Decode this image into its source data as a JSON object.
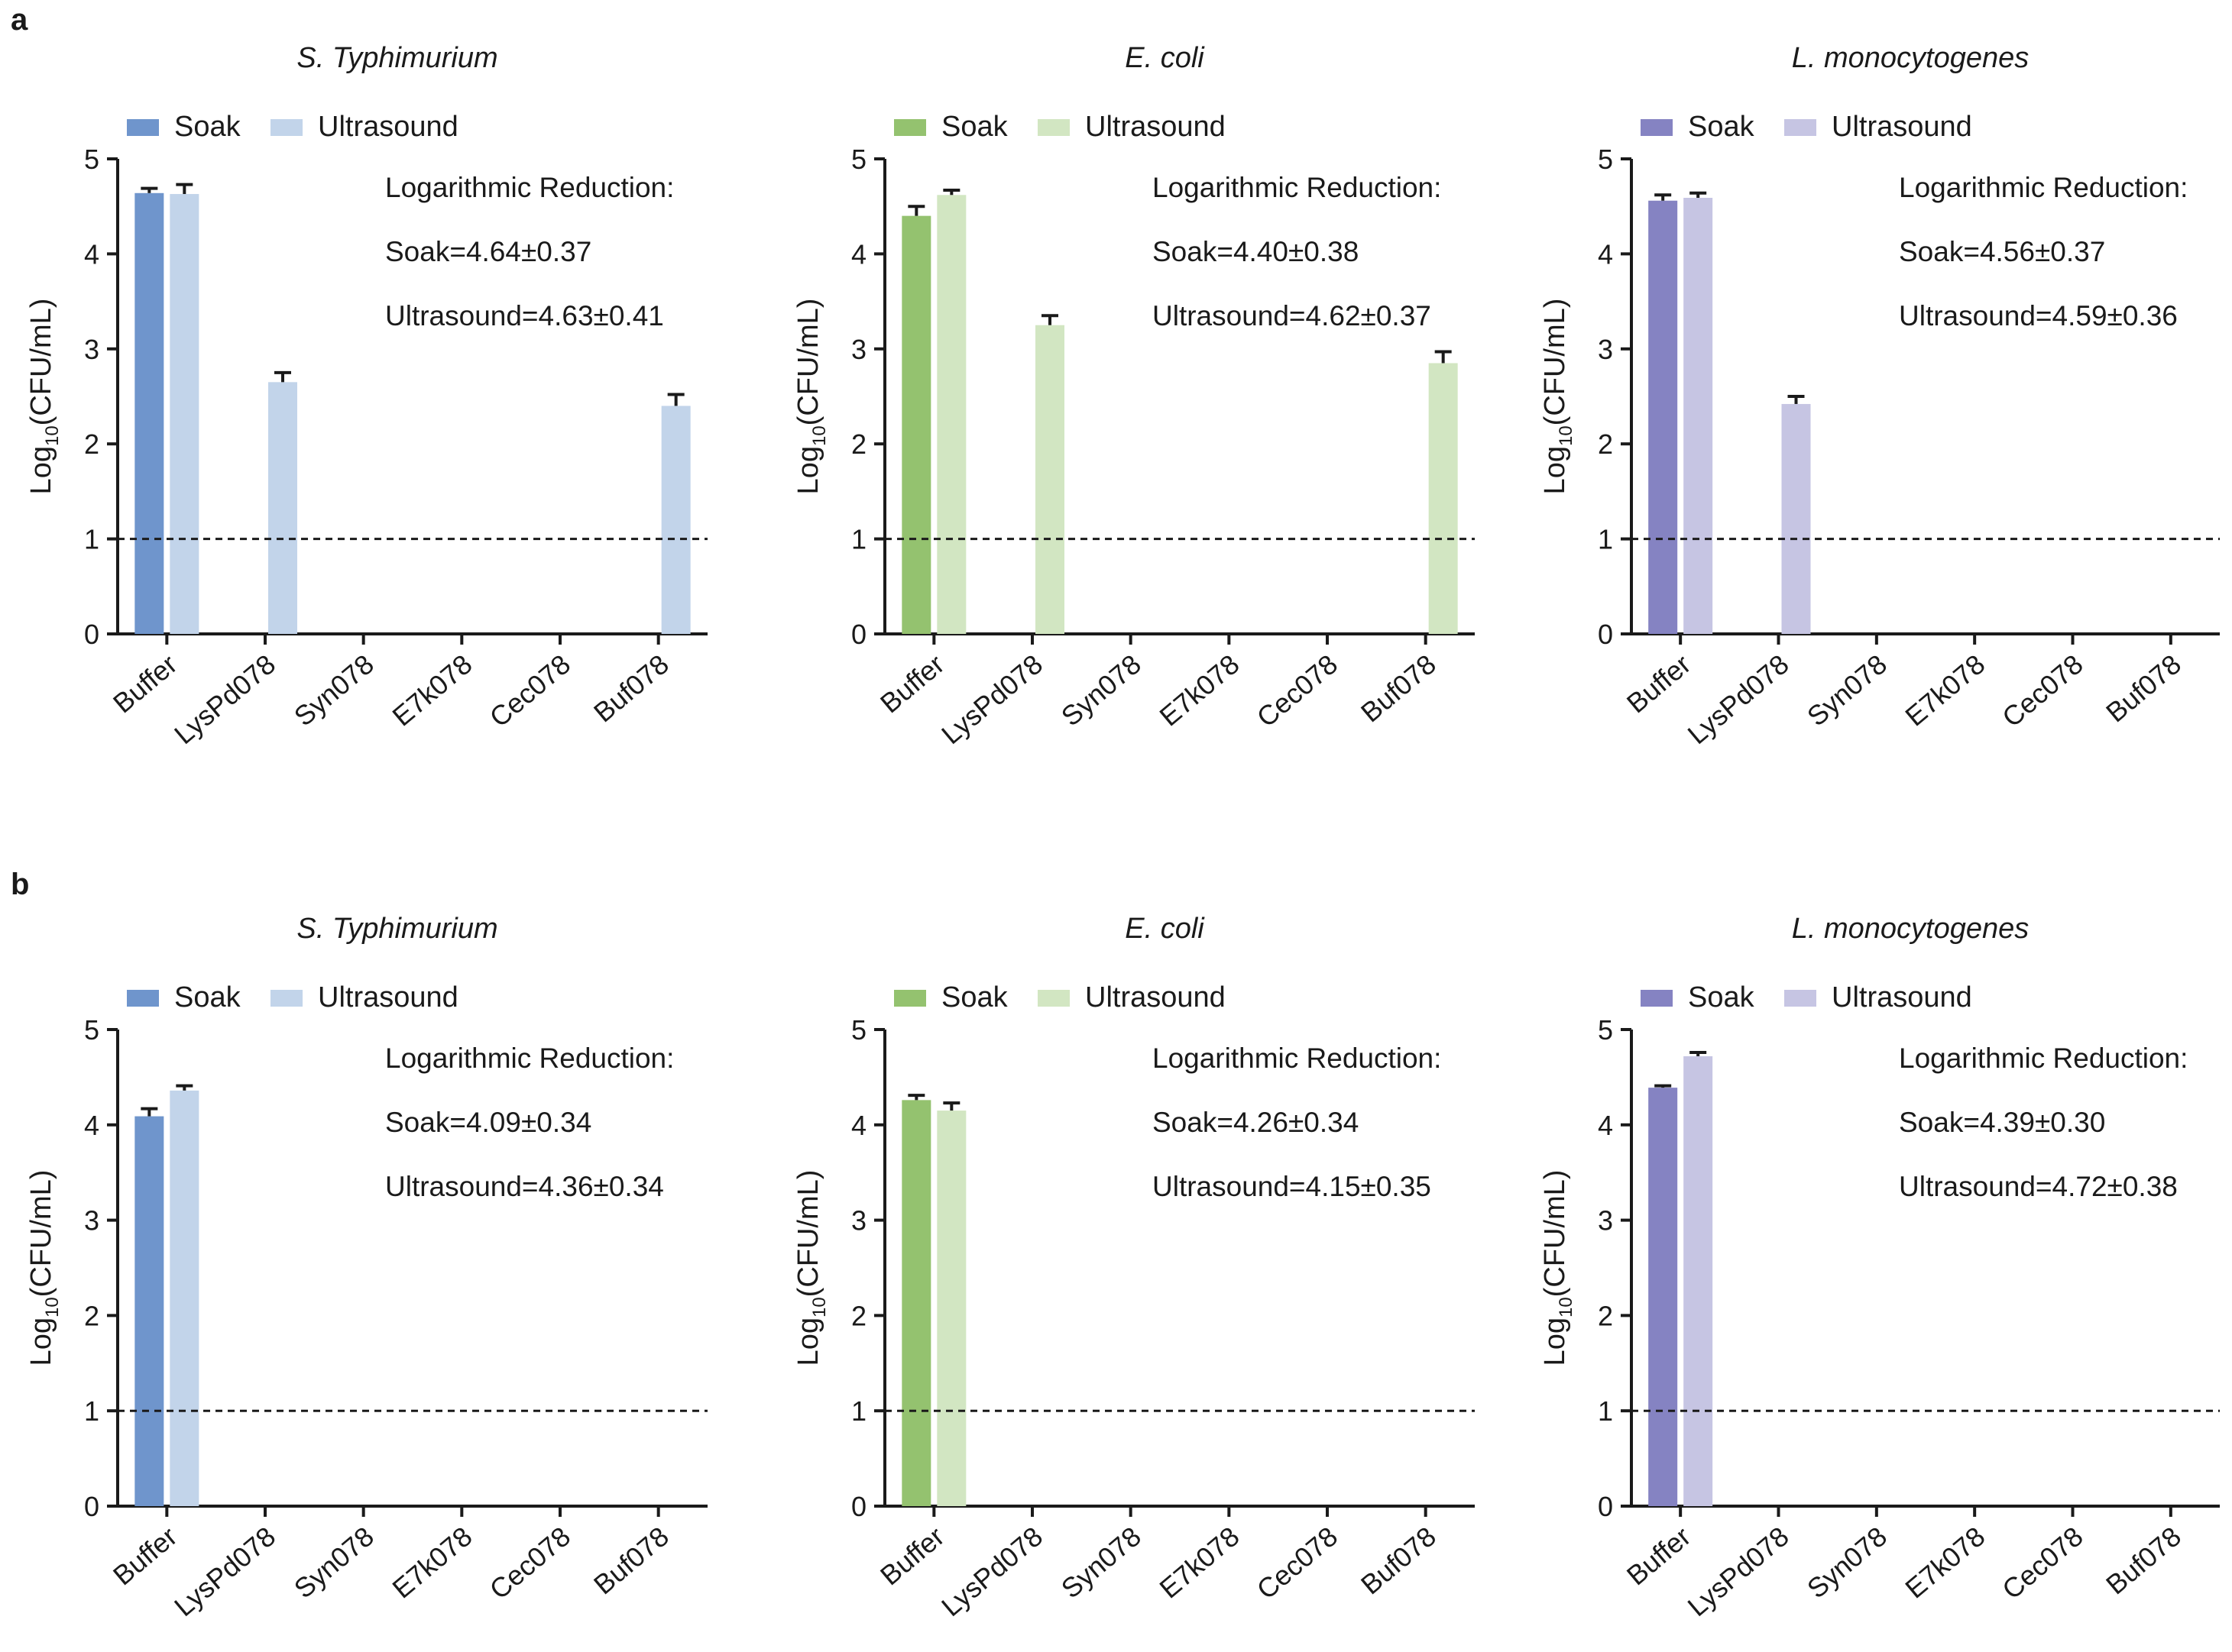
{
  "panels": [
    {
      "letter": "a"
    },
    {
      "letter": "b"
    }
  ],
  "chart_data": [
    {
      "type": "bar",
      "panel": "a",
      "title": "S. Typhimurium",
      "ylabel": "Log10(CFU/mL)",
      "ylabel_main": "Log",
      "ylabel_sub": "10",
      "ylabel_tail": "(CFU/mL)",
      "ylim": [
        0,
        5
      ],
      "yticks": [
        "0",
        "1",
        "2",
        "3",
        "4",
        "5"
      ],
      "categories": [
        "Buffer",
        "LysPd078",
        "Syn078",
        "E7k078",
        "Cec078",
        "Buf078"
      ],
      "threshold": 1,
      "series": [
        {
          "name": "Soak",
          "color": "#6f95cc",
          "values": [
            4.64,
            0,
            0,
            0,
            0,
            0
          ],
          "errors": [
            0.05,
            0,
            0,
            0,
            0,
            0
          ]
        },
        {
          "name": "Ultrasound",
          "color": "#c2d4ea",
          "values": [
            4.63,
            2.65,
            0,
            0,
            0,
            2.4
          ],
          "errors": [
            0.1,
            0.1,
            0,
            0,
            0,
            0.12
          ]
        }
      ],
      "annotation": [
        "Logarithmic Reduction:",
        "Soak=4.64±0.37",
        "Ultrasound=4.63±0.41"
      ]
    },
    {
      "type": "bar",
      "panel": "a",
      "title": "E. coli",
      "ylabel": "Log10(CFU/mL)",
      "ylabel_main": "Log",
      "ylabel_sub": "10",
      "ylabel_tail": "(CFU/mL)",
      "ylim": [
        0,
        5
      ],
      "yticks": [
        "0",
        "1",
        "2",
        "3",
        "4",
        "5"
      ],
      "categories": [
        "Buffer",
        "LysPd078",
        "Syn078",
        "E7k078",
        "Cec078",
        "Buf078"
      ],
      "threshold": 1,
      "series": [
        {
          "name": "Soak",
          "color": "#94c26f",
          "values": [
            4.4,
            0,
            0,
            0,
            0,
            0
          ],
          "errors": [
            0.1,
            0,
            0,
            0,
            0,
            0
          ]
        },
        {
          "name": "Ultrasound",
          "color": "#d2e6c2",
          "values": [
            4.62,
            3.25,
            0,
            0,
            0,
            2.85
          ],
          "errors": [
            0.05,
            0.1,
            0,
            0,
            0,
            0.12
          ]
        }
      ],
      "annotation": [
        "Logarithmic Reduction:",
        "Soak=4.40±0.38",
        "Ultrasound=4.62±0.37"
      ]
    },
    {
      "type": "bar",
      "panel": "a",
      "title": "L. monocytogenes",
      "ylabel": "Log10(CFU/mL)",
      "ylabel_main": "Log",
      "ylabel_sub": "10",
      "ylabel_tail": "(CFU/mL)",
      "ylim": [
        0,
        5
      ],
      "yticks": [
        "0",
        "1",
        "2",
        "3",
        "4",
        "5"
      ],
      "categories": [
        "Buffer",
        "LysPd078",
        "Syn078",
        "E7k078",
        "Cec078",
        "Buf078"
      ],
      "threshold": 1,
      "series": [
        {
          "name": "Soak",
          "color": "#8583c2",
          "values": [
            4.56,
            0,
            0,
            0,
            0,
            0
          ],
          "errors": [
            0.06,
            0,
            0,
            0,
            0,
            0
          ]
        },
        {
          "name": "Ultrasound",
          "color": "#c6c5e3",
          "values": [
            4.59,
            2.42,
            0,
            0,
            0,
            0
          ],
          "errors": [
            0.05,
            0.08,
            0,
            0,
            0,
            0
          ]
        }
      ],
      "annotation": [
        "Logarithmic Reduction:",
        "Soak=4.56±0.37",
        "Ultrasound=4.59±0.36"
      ]
    },
    {
      "type": "bar",
      "panel": "b",
      "title": "S. Typhimurium",
      "ylabel": "Log10(CFU/mL)",
      "ylabel_main": "Log",
      "ylabel_sub": "10",
      "ylabel_tail": "(CFU/mL)",
      "ylim": [
        0,
        5
      ],
      "yticks": [
        "0",
        "1",
        "2",
        "3",
        "4",
        "5"
      ],
      "categories": [
        "Buffer",
        "LysPd078",
        "Syn078",
        "E7k078",
        "Cec078",
        "Buf078"
      ],
      "threshold": 1,
      "series": [
        {
          "name": "Soak",
          "color": "#6f95cc",
          "values": [
            4.09,
            0,
            0,
            0,
            0,
            0
          ],
          "errors": [
            0.08,
            0,
            0,
            0,
            0,
            0
          ]
        },
        {
          "name": "Ultrasound",
          "color": "#c2d4ea",
          "values": [
            4.36,
            0,
            0,
            0,
            0,
            0
          ],
          "errors": [
            0.05,
            0,
            0,
            0,
            0,
            0
          ]
        }
      ],
      "annotation": [
        "Logarithmic Reduction:",
        "Soak=4.09±0.34",
        "Ultrasound=4.36±0.34"
      ]
    },
    {
      "type": "bar",
      "panel": "b",
      "title": "E. coli",
      "ylabel": "Log10(CFU/mL)",
      "ylabel_main": "Log",
      "ylabel_sub": "10",
      "ylabel_tail": "(CFU/mL)",
      "ylim": [
        0,
        5
      ],
      "yticks": [
        "0",
        "1",
        "2",
        "3",
        "4",
        "5"
      ],
      "categories": [
        "Buffer",
        "LysPd078",
        "Syn078",
        "E7k078",
        "Cec078",
        "Buf078"
      ],
      "threshold": 1,
      "series": [
        {
          "name": "Soak",
          "color": "#94c26f",
          "values": [
            4.26,
            0,
            0,
            0,
            0,
            0
          ],
          "errors": [
            0.05,
            0,
            0,
            0,
            0,
            0
          ]
        },
        {
          "name": "Ultrasound",
          "color": "#d2e6c2",
          "values": [
            4.15,
            0,
            0,
            0,
            0,
            0
          ],
          "errors": [
            0.08,
            0,
            0,
            0,
            0,
            0
          ]
        }
      ],
      "annotation": [
        "Logarithmic Reduction:",
        "Soak=4.26±0.34",
        "Ultrasound=4.15±0.35"
      ]
    },
    {
      "type": "bar",
      "panel": "b",
      "title": "L. monocytogenes",
      "ylabel": "Log10(CFU/mL)",
      "ylabel_main": "Log",
      "ylabel_sub": "10",
      "ylabel_tail": "(CFU/mL)",
      "ylim": [
        0,
        5
      ],
      "yticks": [
        "0",
        "1",
        "2",
        "3",
        "4",
        "5"
      ],
      "categories": [
        "Buffer",
        "LysPd078",
        "Syn078",
        "E7k078",
        "Cec078",
        "Buf078"
      ],
      "threshold": 1,
      "series": [
        {
          "name": "Soak",
          "color": "#8583c2",
          "values": [
            4.39,
            0,
            0,
            0,
            0,
            0
          ],
          "errors": [
            0.02,
            0,
            0,
            0,
            0,
            0
          ]
        },
        {
          "name": "Ultrasound",
          "color": "#c6c5e3",
          "values": [
            4.72,
            0,
            0,
            0,
            0,
            0
          ],
          "errors": [
            0.04,
            0,
            0,
            0,
            0,
            0
          ]
        }
      ],
      "annotation": [
        "Logarithmic Reduction:",
        "Soak=4.39±0.30",
        "Ultrasound=4.72±0.38"
      ]
    }
  ]
}
